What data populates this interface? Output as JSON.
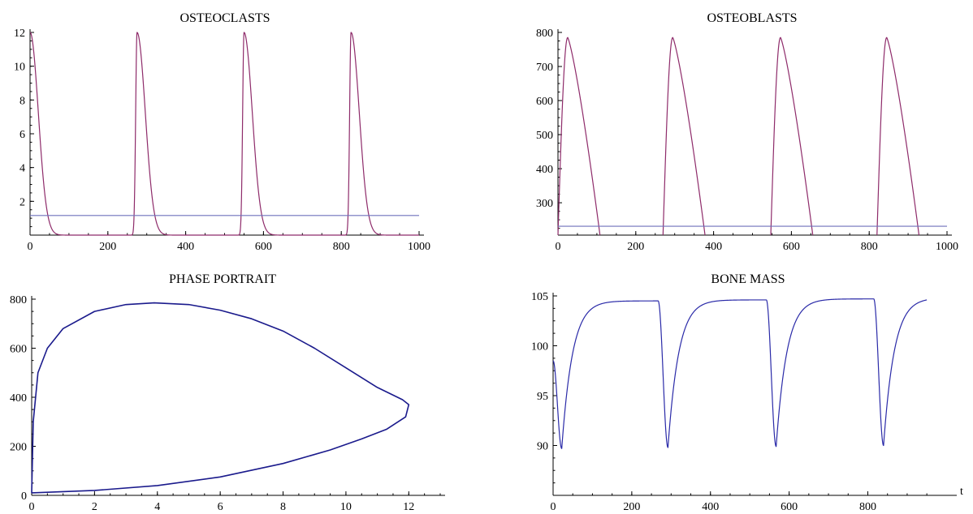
{
  "colors": {
    "purple_curve": "#8e2b6a",
    "blue_line": "#6f72bb",
    "navy_curve": "#1a1a8c",
    "bone_curve": "#2a2aa8"
  },
  "chart_data": [
    {
      "id": "osteoclasts",
      "type": "line",
      "title": "OSTEOCLASTS",
      "xlabel": "",
      "ylabel": "",
      "xlim": [
        0,
        1000
      ],
      "ylim": [
        0,
        12
      ],
      "xticks": [
        0,
        200,
        400,
        600,
        800,
        1000
      ],
      "yticks": [
        2,
        4,
        6,
        8,
        10,
        12
      ],
      "grid": false,
      "series": [
        {
          "kind": "pulses",
          "color": "#8e2b6a",
          "peaks": [
            {
              "t": 0,
              "h": 12
            },
            {
              "t": 275,
              "h": 12
            },
            {
              "t": 550,
              "h": 12
            },
            {
              "t": 825,
              "h": 12
            }
          ],
          "rise_halfwidth": 5,
          "decay_width": 30
        },
        {
          "kind": "hline",
          "color": "#6f72bb",
          "y": 1.16
        }
      ]
    },
    {
      "id": "osteoblasts",
      "type": "line",
      "title": "OSTEOBLASTS",
      "xlabel": "",
      "ylabel": "",
      "xlim": [
        0,
        1000
      ],
      "ylim": [
        205,
        800
      ],
      "xticks": [
        0,
        200,
        400,
        600,
        800,
        1000
      ],
      "yticks": [
        300,
        400,
        500,
        600,
        700,
        800
      ],
      "grid": false,
      "series": [
        {
          "kind": "blast_pulses",
          "color": "#8e2b6a",
          "onsets": [
            0,
            270,
            547,
            820
          ],
          "peak_offset": 25,
          "peak": 785,
          "end_offset": 108,
          "base": 205
        },
        {
          "kind": "hline",
          "color": "#6f72bb",
          "y": 231
        }
      ]
    },
    {
      "id": "phase_portrait",
      "type": "line",
      "title": "PHASE PORTRAIT",
      "xlabel": "",
      "ylabel": "",
      "xlim": [
        0,
        13
      ],
      "ylim": [
        0,
        800
      ],
      "xticks": [
        0,
        2,
        4,
        6,
        8,
        10,
        12
      ],
      "yticks": [
        0,
        200,
        400,
        600,
        800
      ],
      "grid": false,
      "series": [
        {
          "kind": "loop",
          "color": "#1a1a8c",
          "points": [
            [
              0,
              10
            ],
            [
              0.05,
              300
            ],
            [
              0.2,
              500
            ],
            [
              0.5,
              600
            ],
            [
              1,
              680
            ],
            [
              2,
              750
            ],
            [
              3,
              778
            ],
            [
              3.9,
              785
            ],
            [
              5,
              778
            ],
            [
              6,
              755
            ],
            [
              7,
              720
            ],
            [
              8,
              670
            ],
            [
              9,
              600
            ],
            [
              10,
              520
            ],
            [
              11,
              440
            ],
            [
              11.8,
              390
            ],
            [
              12,
              370
            ],
            [
              11.9,
              320
            ],
            [
              11.3,
              270
            ],
            [
              10.5,
              230
            ],
            [
              9.5,
              185
            ],
            [
              8,
              130
            ],
            [
              6,
              75
            ],
            [
              4,
              40
            ],
            [
              2,
              20
            ],
            [
              0,
              10
            ]
          ]
        }
      ]
    },
    {
      "id": "bone_mass",
      "type": "line",
      "title": "BONE MASS",
      "xlabel": "t",
      "ylabel": "",
      "xlim": [
        0,
        960
      ],
      "ylim": [
        85,
        105
      ],
      "xticks": [
        0,
        200,
        400,
        600,
        800
      ],
      "yticks": [
        90,
        95,
        100,
        105
      ],
      "grid": false,
      "series": [
        {
          "kind": "bone",
          "color": "#2a2aa8",
          "dips": [
            {
              "t0": 0,
              "start": 98.5,
              "tmin": 22,
              "min": 89.7,
              "plateau": 104.5
            },
            {
              "t0": 267,
              "start": 104.5,
              "tmin": 292,
              "min": 89.8,
              "plateau": 104.6
            },
            {
              "t0": 542,
              "start": 104.6,
              "tmin": 567,
              "min": 89.9,
              "plateau": 104.7
            },
            {
              "t0": 815,
              "start": 104.7,
              "tmin": 840,
              "min": 90.0,
              "plateau": 104.8
            }
          ],
          "t_end": 950
        }
      ]
    }
  ]
}
